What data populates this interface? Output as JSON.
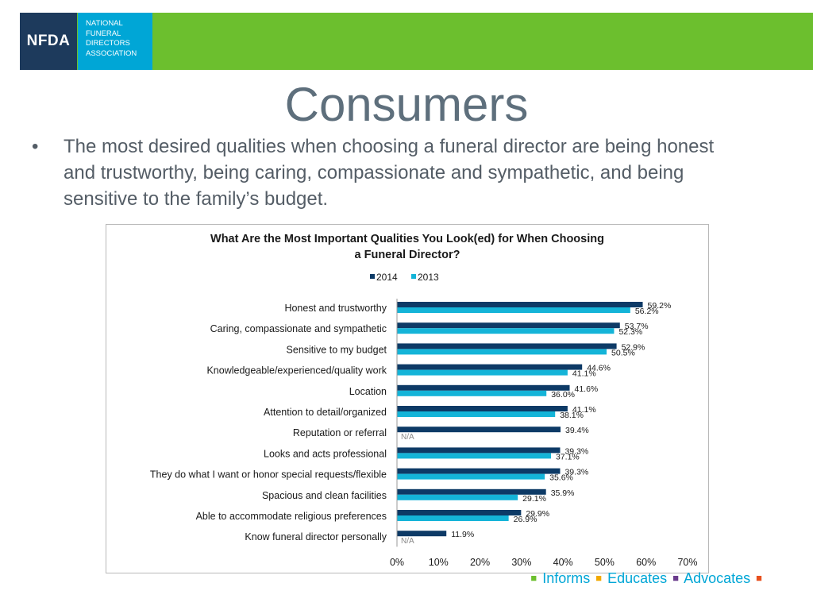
{
  "header": {
    "logo_mark": "NFDA",
    "logo_lines": [
      "NATIONAL",
      "FUNERAL",
      "DIRECTORS",
      "ASSOCIATION"
    ],
    "green": "#6cbf2e",
    "navy": "#1d3a5c",
    "cyan": "#00a6d6"
  },
  "slide": {
    "title": "Consumers",
    "bullet_symbol": "•",
    "bullet": "The most desired qualities when choosing a funeral director are being honest and trustworthy, being caring, compassionate and sympathetic, and being sensitive to the family’s budget."
  },
  "chart_data": {
    "type": "bar",
    "orientation": "horizontal",
    "title_lines": [
      "What Are the Most Important Qualities You Look(ed) for When Choosing",
      "a Funeral Director?"
    ],
    "legend_position": "top-center",
    "categories": [
      "Honest and trustworthy",
      "Caring, compassionate and sympathetic",
      "Sensitive to my budget",
      "Knowledgeable/experienced/quality work",
      "Location",
      "Attention to detail/organized",
      "Reputation or referral",
      "Looks and acts professional",
      "They do what I want or honor special requests/flexible",
      "Spacious and clean facilities",
      "Able to accommodate religious preferences",
      "Know funeral director personally"
    ],
    "series": [
      {
        "name": "2014",
        "color": "#0d3a66",
        "values": [
          59.2,
          53.7,
          52.9,
          44.6,
          41.6,
          41.1,
          39.4,
          39.3,
          39.3,
          35.9,
          29.9,
          11.9
        ],
        "labels": [
          "59.2%",
          "53.7%",
          "52.9%",
          "44.6%",
          "41.6%",
          "41.1%",
          "39.4%",
          "39.3%",
          "39.3%",
          "35.9%",
          "29.9%",
          "11.9%"
        ]
      },
      {
        "name": "2013",
        "color": "#14b4d8",
        "values": [
          56.2,
          52.3,
          50.5,
          41.1,
          36.0,
          38.1,
          null,
          37.1,
          35.6,
          29.1,
          26.9,
          null
        ],
        "labels": [
          "56.2%",
          "52.3%",
          "50.5%",
          "41.1%",
          "36.0%",
          "38.1%",
          "N/A",
          "37.1%",
          "35.6%",
          "29.1%",
          "26.9%",
          "N/A"
        ]
      }
    ],
    "xlim": [
      0,
      70
    ],
    "xticks": [
      0,
      10,
      20,
      30,
      40,
      50,
      60,
      70
    ],
    "xtick_labels": [
      "0%",
      "10%",
      "20%",
      "30%",
      "40%",
      "50%",
      "60%",
      "70%"
    ],
    "grid": false
  },
  "footer": {
    "items": [
      {
        "label": "Informs",
        "color": "#6cbf2e"
      },
      {
        "label": "Educates",
        "color": "#f2a900"
      },
      {
        "label": "Advocates",
        "color": "#6a3b8c"
      }
    ],
    "end_square_color": "#e8501e"
  }
}
